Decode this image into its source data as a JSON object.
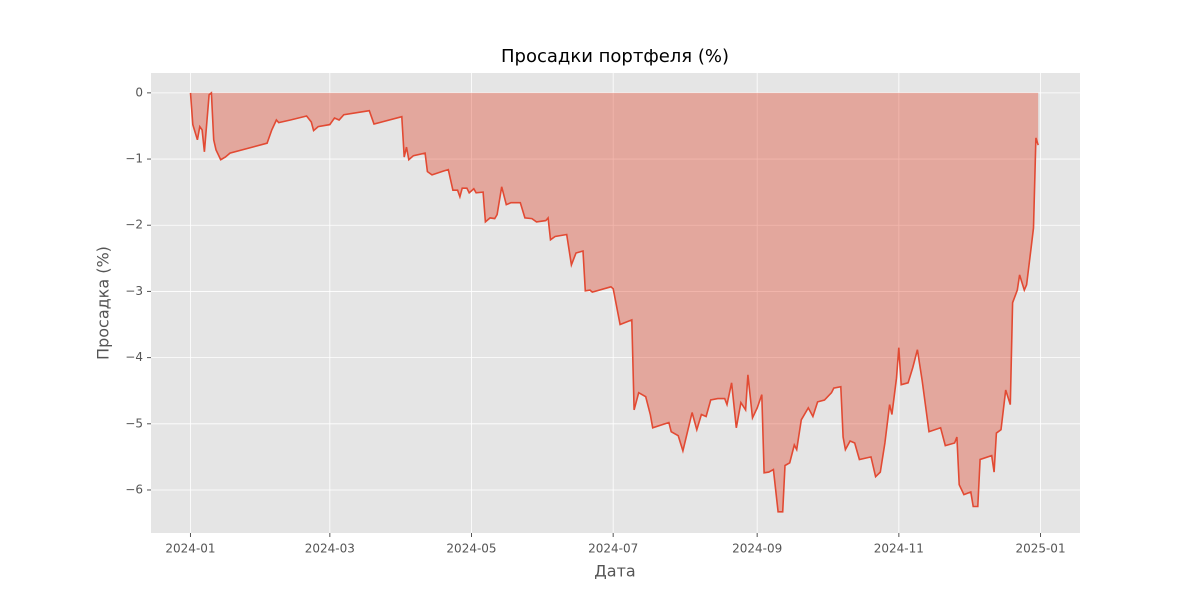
{
  "chart_data": {
    "type": "line",
    "title": "Просадки портфеля (%)",
    "x_label": "Дата",
    "y_label": "Просадка (%)",
    "x": [
      "2024-01-01",
      "2024-01-02",
      "2024-01-04",
      "2024-01-05",
      "2024-01-06",
      "2024-01-07",
      "2024-01-09",
      "2024-01-10",
      "2024-01-11",
      "2024-01-12",
      "2024-01-14",
      "2024-01-16",
      "2024-01-18",
      "2024-02-03",
      "2024-02-05",
      "2024-02-07",
      "2024-02-08",
      "2024-02-13",
      "2024-02-20",
      "2024-02-22",
      "2024-02-23",
      "2024-02-25",
      "2024-03-01",
      "2024-03-03",
      "2024-03-05",
      "2024-03-07",
      "2024-03-18",
      "2024-03-20",
      "2024-04-01",
      "2024-04-02",
      "2024-04-03",
      "2024-04-04",
      "2024-04-06",
      "2024-04-11",
      "2024-04-12",
      "2024-04-14",
      "2024-04-19",
      "2024-04-21",
      "2024-04-23",
      "2024-04-25",
      "2024-04-26",
      "2024-04-27",
      "2024-04-29",
      "2024-04-30",
      "2024-05-02",
      "2024-05-03",
      "2024-05-06",
      "2024-05-07",
      "2024-05-09",
      "2024-05-11",
      "2024-05-12",
      "2024-05-14",
      "2024-05-16",
      "2024-05-18",
      "2024-05-22",
      "2024-05-24",
      "2024-05-27",
      "2024-05-29",
      "2024-06-02",
      "2024-06-03",
      "2024-06-04",
      "2024-06-06",
      "2024-06-11",
      "2024-06-13",
      "2024-06-15",
      "2024-06-18",
      "2024-06-19",
      "2024-06-21",
      "2024-06-22",
      "2024-06-30",
      "2024-07-01",
      "2024-07-04",
      "2024-07-09",
      "2024-07-10",
      "2024-07-12",
      "2024-07-15",
      "2024-07-17",
      "2024-07-18",
      "2024-07-25",
      "2024-07-26",
      "2024-07-29",
      "2024-07-31",
      "2024-08-02",
      "2024-08-04",
      "2024-08-06",
      "2024-08-08",
      "2024-08-10",
      "2024-08-12",
      "2024-08-15",
      "2024-08-18",
      "2024-08-19",
      "2024-08-21",
      "2024-08-23",
      "2024-08-25",
      "2024-08-27",
      "2024-08-28",
      "2024-08-30",
      "2024-09-01",
      "2024-09-03",
      "2024-09-04",
      "2024-09-06",
      "2024-09-08",
      "2024-09-10",
      "2024-09-12",
      "2024-09-13",
      "2024-09-15",
      "2024-09-17",
      "2024-09-18",
      "2024-09-20",
      "2024-09-23",
      "2024-09-25",
      "2024-09-27",
      "2024-09-30",
      "2024-10-03",
      "2024-10-04",
      "2024-10-07",
      "2024-10-08",
      "2024-10-09",
      "2024-10-11",
      "2024-10-13",
      "2024-10-15",
      "2024-10-20",
      "2024-10-22",
      "2024-10-24",
      "2024-10-26",
      "2024-10-28",
      "2024-10-29",
      "2024-10-31",
      "2024-11-01",
      "2024-11-02",
      "2024-11-05",
      "2024-11-07",
      "2024-11-09",
      "2024-11-11",
      "2024-11-14",
      "2024-11-19",
      "2024-11-21",
      "2024-11-25",
      "2024-11-26",
      "2024-11-27",
      "2024-11-29",
      "2024-12-02",
      "2024-12-03",
      "2024-12-05",
      "2024-12-06",
      "2024-12-11",
      "2024-12-12",
      "2024-12-13",
      "2024-12-15",
      "2024-12-17",
      "2024-12-19",
      "2024-12-20",
      "2024-12-22",
      "2024-12-23",
      "2024-12-25",
      "2024-12-26",
      "2024-12-28",
      "2024-12-29",
      "2024-12-30",
      "2024-12-31"
    ],
    "series": [
      {
        "color": "#e24a33",
        "values": [
          0,
          -0.48,
          -0.71,
          -0.51,
          -0.56,
          -0.89,
          -0.03,
          0,
          -0.71,
          -0.86,
          -1.01,
          -0.97,
          -0.91,
          -0.76,
          -0.56,
          -0.41,
          -0.45,
          -0.41,
          -0.35,
          -0.44,
          -0.57,
          -0.51,
          -0.48,
          -0.38,
          -0.41,
          -0.33,
          -0.27,
          -0.47,
          -0.36,
          -0.97,
          -0.82,
          -1.01,
          -0.95,
          -0.91,
          -1.19,
          -1.24,
          -1.18,
          -1.16,
          -1.47,
          -1.47,
          -1.57,
          -1.44,
          -1.44,
          -1.51,
          -1.45,
          -1.51,
          -1.5,
          -1.95,
          -1.89,
          -1.9,
          -1.84,
          -1.42,
          -1.69,
          -1.66,
          -1.66,
          -1.89,
          -1.9,
          -1.95,
          -1.93,
          -1.89,
          -2.22,
          -2.17,
          -2.14,
          -2.6,
          -2.42,
          -2.39,
          -2.99,
          -2.98,
          -3.01,
          -2.93,
          -2.96,
          -3.5,
          -3.43,
          -4.79,
          -4.53,
          -4.59,
          -4.86,
          -5.06,
          -4.98,
          -5.12,
          -5.18,
          -5.41,
          -5.12,
          -4.83,
          -5.09,
          -4.86,
          -4.89,
          -4.64,
          -4.62,
          -4.62,
          -4.71,
          -4.38,
          -5.06,
          -4.68,
          -4.79,
          -4.26,
          -4.91,
          -4.76,
          -4.56,
          -5.74,
          -5.73,
          -5.69,
          -6.33,
          -6.33,
          -5.63,
          -5.59,
          -5.32,
          -5.39,
          -4.94,
          -4.76,
          -4.89,
          -4.67,
          -4.64,
          -4.53,
          -4.46,
          -4.44,
          -5.2,
          -5.39,
          -5.26,
          -5.29,
          -5.54,
          -5.5,
          -5.8,
          -5.73,
          -5.29,
          -4.71,
          -4.86,
          -4.31,
          -3.85,
          -4.41,
          -4.38,
          -4.15,
          -3.88,
          -4.34,
          -5.12,
          -5.06,
          -5.33,
          -5.29,
          -5.2,
          -5.92,
          -6.07,
          -6.03,
          -6.25,
          -6.25,
          -5.54,
          -5.48,
          -5.73,
          -5.14,
          -5.09,
          -4.49,
          -4.71,
          -3.17,
          -2.98,
          -2.75,
          -2.98,
          -2.9,
          -2.33,
          -2.04,
          -0.68,
          -0.79
        ]
      }
    ],
    "fill": true,
    "xlim": [
      "2023-12-15",
      "2025-01-18"
    ],
    "xticks": [
      {
        "value": "2024-01-01",
        "label": "2024-01"
      },
      {
        "value": "2024-03-01",
        "label": "2024-03"
      },
      {
        "value": "2024-05-01",
        "label": "2024-05"
      },
      {
        "value": "2024-07-01",
        "label": "2024-07"
      },
      {
        "value": "2024-09-01",
        "label": "2024-09"
      },
      {
        "value": "2024-11-01",
        "label": "2024-11"
      },
      {
        "value": "2025-01-01",
        "label": "2025-01"
      }
    ],
    "ylim": [
      -6.65,
      0.3
    ],
    "yticks": [
      {
        "value": -6,
        "label": "−6"
      },
      {
        "value": -5,
        "label": "−5"
      },
      {
        "value": -4,
        "label": "−4"
      },
      {
        "value": -3,
        "label": "−3"
      },
      {
        "value": -2,
        "label": "−2"
      },
      {
        "value": -1,
        "label": "−1"
      },
      0
    ],
    "grid": true
  }
}
